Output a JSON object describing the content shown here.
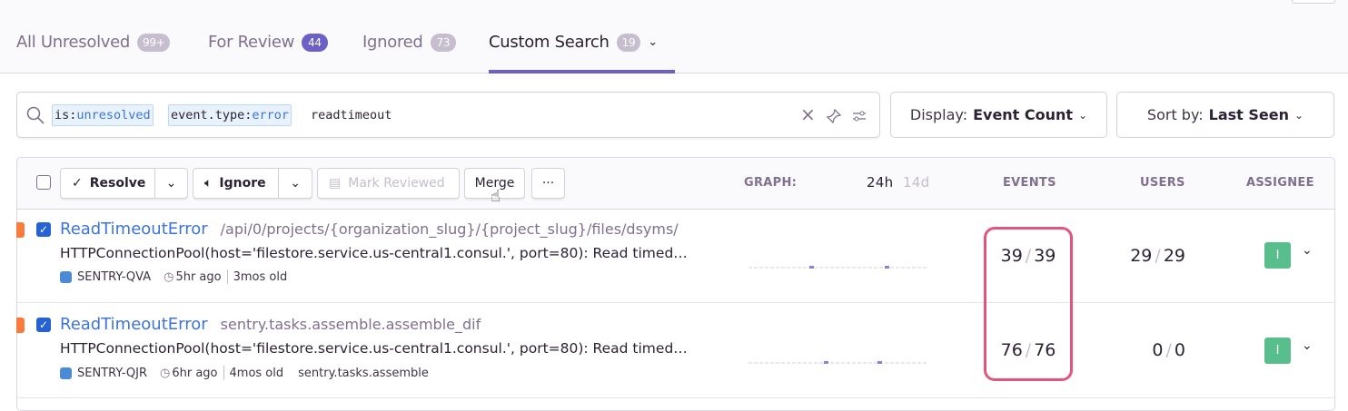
{
  "tabs": [
    {
      "label": "All Unresolved",
      "count": "99+",
      "badge_color": "#c6becf"
    },
    {
      "label": "For Review",
      "count": "44",
      "badge_color": "#6c5fc7"
    },
    {
      "label": "Ignored",
      "count": "73",
      "badge_color": "#c6becf"
    },
    {
      "label": "Custom Search",
      "count": "19",
      "badge_color": "#c6becf",
      "active": true
    }
  ],
  "search": {
    "tokens": [
      {
        "key": "is:",
        "value": "unresolved"
      },
      {
        "key": "event.type:",
        "value": "error"
      }
    ],
    "text": "readtimeout"
  },
  "display": {
    "label": "Display:",
    "value": "Event Count"
  },
  "sort": {
    "label": "Sort by:",
    "value": "Last Seen"
  },
  "toolbar": {
    "resolve": "Resolve",
    "ignore": "Ignore",
    "mark_reviewed": "Mark Reviewed",
    "merge": "Merge",
    "more": "···"
  },
  "columns": {
    "graph": "GRAPH:",
    "period_24h": "24h",
    "period_14d": "14d",
    "events": "EVENTS",
    "users": "USERS",
    "assignee": "ASSIGNEE"
  },
  "issues": [
    {
      "title": "ReadTimeoutError",
      "culprit": "/api/0/projects/{organization_slug}/{project_slug}/files/dsyms/",
      "message": "HTTPConnectionPool(host='filestore.service.us-central1.consul.', port=80): Read timed…",
      "short_id": "SENTRY-QVA",
      "last_seen": "5hr ago",
      "age": "3mos old",
      "extra": "",
      "events": "39",
      "events_total": "39",
      "users": "29",
      "users_total": "29",
      "assignee": "I",
      "checked": true
    },
    {
      "title": "ReadTimeoutError",
      "culprit": "sentry.tasks.assemble.assemble_dif",
      "message": "HTTPConnectionPool(host='filestore.service.us-central1.consul.', port=80): Read timed…",
      "short_id": "SENTRY-QJR",
      "last_seen": "6hr ago",
      "age": "4mos old",
      "extra": "sentry.tasks.assemble",
      "events": "76",
      "events_total": "76",
      "users": "0",
      "users_total": "0",
      "assignee": "I",
      "checked": true
    }
  ],
  "colors": {
    "accent": "#6c5fc7",
    "link": "#3d74db",
    "highlight": "#e1567c",
    "level_error": "#f97b3d",
    "assignee": "#57be8c"
  }
}
